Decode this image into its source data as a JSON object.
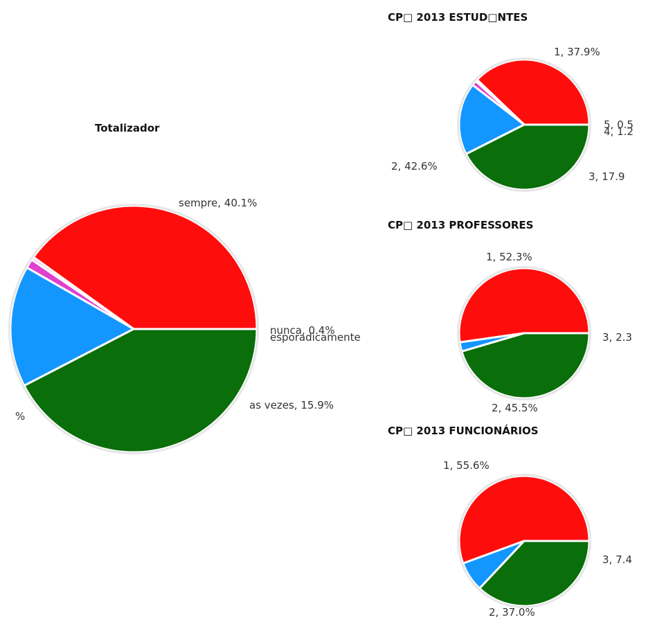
{
  "chart_data": [
    {
      "type": "pie",
      "title": "Totalizador",
      "slices": [
        {
          "label": "sempre, 40.1%",
          "value": 40.1,
          "color": "#ff0d0d"
        },
        {
          "label": "nunca, 0.4%",
          "value": 0.4,
          "color": "#ffb0f0"
        },
        {
          "label": "esporadicamente",
          "value": 1.2,
          "color": "#e040d0"
        },
        {
          "label": "as vezes, 15.9%",
          "value": 15.9,
          "color": "#1496ff"
        },
        {
          "label": "%",
          "value": 42.4,
          "color": "#0a6e0a"
        }
      ]
    },
    {
      "type": "pie",
      "title": "CP□ 2013 ESTUD□NTES",
      "slices": [
        {
          "label": "1, 37.9%",
          "value": 37.9,
          "color": "#ff0d0d"
        },
        {
          "label": "5, 0.5",
          "value": 0.5,
          "color": "#ffb0f0"
        },
        {
          "label": "4, 1.2",
          "value": 1.2,
          "color": "#e040d0"
        },
        {
          "label": "3, 17.9",
          "value": 17.9,
          "color": "#1496ff"
        },
        {
          "label": "2, 42.6%",
          "value": 42.6,
          "color": "#0a6e0a"
        }
      ]
    },
    {
      "type": "pie",
      "title": "CP□ 2013 PROFESSORES",
      "slices": [
        {
          "label": "1, 52.3%",
          "value": 52.3,
          "color": "#ff0d0d"
        },
        {
          "label": "3, 2.3",
          "value": 2.3,
          "color": "#1496ff"
        },
        {
          "label": "2, 45.5%",
          "value": 45.5,
          "color": "#0a6e0a"
        }
      ]
    },
    {
      "type": "pie",
      "title": "CP□ 2013 FUNCIONÁRIOS",
      "slices": [
        {
          "label": "1, 55.6%",
          "value": 55.6,
          "color": "#ff0d0d"
        },
        {
          "label": "3, 7.4",
          "value": 7.4,
          "color": "#1496ff"
        },
        {
          "label": "2, 37.0%",
          "value": 37.0,
          "color": "#0a6e0a"
        }
      ]
    }
  ]
}
